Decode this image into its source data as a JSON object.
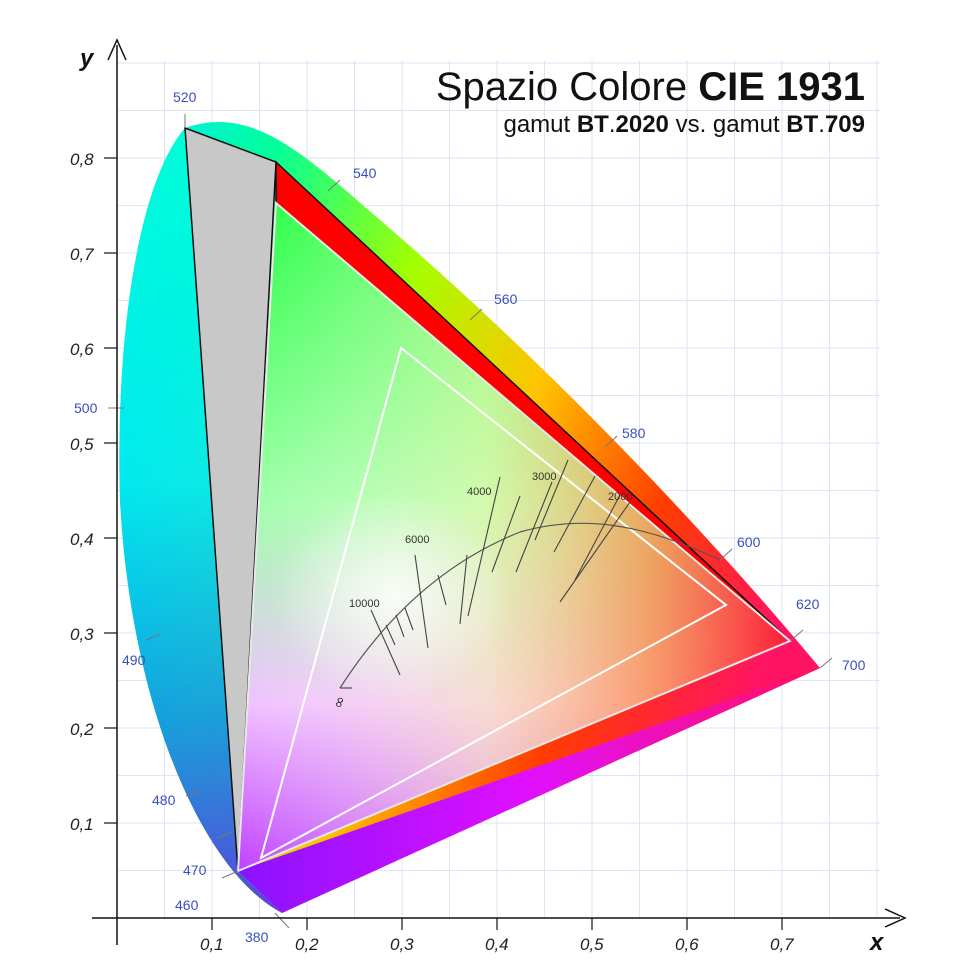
{
  "title": {
    "main": "Spazio Colore ",
    "main_bold": "CIE 1931"
  },
  "subtitle": {
    "a": "gamut ",
    "b": "BT",
    "c": ".",
    "d": "2020",
    "e": " vs. gamut ",
    "f": "BT",
    "g": ".",
    "h": "709"
  },
  "axes": {
    "x_name": "x",
    "y_name": "y",
    "x_ticks": [
      "0,1",
      "0,2",
      "0,3",
      "0,4",
      "0,5",
      "0,6",
      "0,7"
    ],
    "y_ticks": [
      "0,1",
      "0,2",
      "0,3",
      "0,4",
      "0,5",
      "0,6",
      "0,7",
      "0,8"
    ]
  },
  "wavelength_labels": [
    "380",
    "460",
    "470",
    "480",
    "490",
    "500",
    "520",
    "540",
    "560",
    "580",
    "600",
    "620",
    "700"
  ],
  "temperature_labels": [
    "10000",
    "6000",
    "4000",
    "3000",
    "2000"
  ],
  "infinity_label": "∞",
  "gamuts": {
    "bt2020": {
      "red": [
        0.708,
        0.292
      ],
      "green": [
        0.17,
        0.797
      ],
      "blue": [
        0.131,
        0.046
      ]
    },
    "bt709": {
      "red": [
        0.64,
        0.33
      ],
      "green": [
        0.3,
        0.6
      ],
      "blue": [
        0.15,
        0.06
      ]
    }
  },
  "colors": {
    "gray_region": "#c8c8c8",
    "red_region": "#ff0000",
    "bt709_outline": "#ffffff",
    "wavelength_text": "#3a4fbf",
    "grid": "#dfe3f5"
  }
}
